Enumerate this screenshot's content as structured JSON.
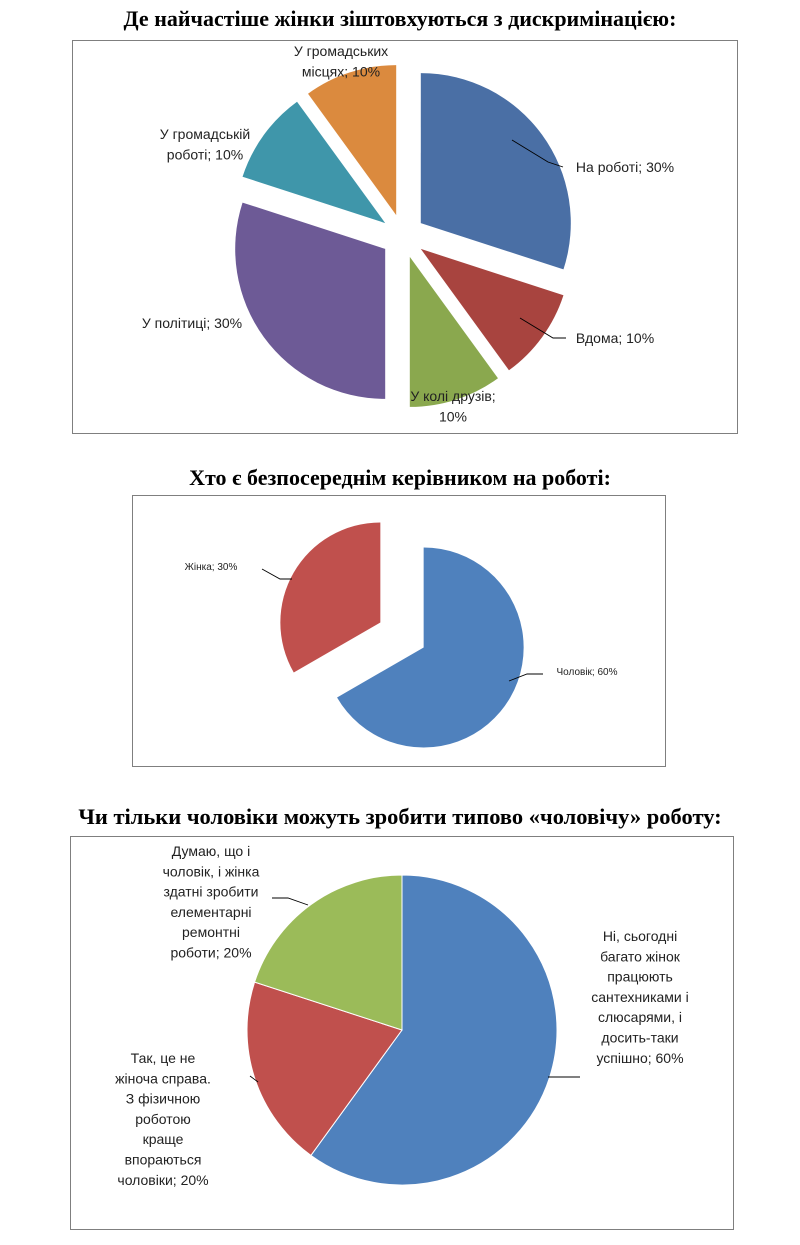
{
  "chart_data": [
    {
      "type": "pie",
      "title": "Де найчастіше жінки зіштовхуються з дискримінацією:",
      "categories": [
        "На роботі",
        "Вдома",
        "У колі друзів",
        "У політиці",
        "У громадській роботі",
        "У громадських місцях"
      ],
      "values": [
        30,
        10,
        10,
        30,
        10,
        10
      ],
      "labels": [
        [
          "На роботі; 30%"
        ],
        [
          "Вдома; 10%"
        ],
        [
          "У колі друзів;",
          "10%"
        ],
        [
          "У політиці; 30%"
        ],
        [
          "У громадській",
          "роботі; 10%"
        ],
        [
          "У громадських",
          "місцях; 10%"
        ]
      ],
      "colors": [
        "#4a6fa5",
        "#a8443f",
        "#8aa84e",
        "#6d5a96",
        "#3f96aa",
        "#db8a3e"
      ],
      "exploded": true
    },
    {
      "type": "pie",
      "title": "Хто є безпосереднім керівником на роботі:",
      "categories": [
        "Чоловік",
        "Жінка"
      ],
      "values": [
        60,
        30
      ],
      "labels": [
        [
          "Чоловік; 60%"
        ],
        [
          "Жінка; 30%"
        ]
      ],
      "colors": [
        "#4f81bd",
        "#c0504d"
      ],
      "exploded": true
    },
    {
      "type": "pie",
      "title": "Чи тільки чоловіки можуть зробити типово «чоловічу» роботу:",
      "categories": [
        "Ні, сьогодні багато жінок працюють сантехниками і слюсарями, і досить-таки успішно",
        "Так, це не жіноча справа. З фізичною роботою краще впораються чоловіки",
        "Думаю, що і чоловік, і жінка здатні зробити елементарні ремонтні роботи"
      ],
      "values": [
        60,
        20,
        20
      ],
      "labels": [
        [
          "Ні, сьогодні",
          "багато жінок",
          "працюють",
          "сантехниками і",
          "слюсарями, і",
          "досить-таки",
          "успішно; 60%"
        ],
        [
          "Так, це не",
          "жіноча справа.",
          "З фізичною",
          "роботою",
          "краще",
          "впораються",
          "чоловіки; 20%"
        ],
        [
          "Думаю, що і",
          "чоловік, і жінка",
          "здатні зробити",
          "елементарні",
          "ремонтні",
          "роботи; 20%"
        ]
      ],
      "colors": [
        "#4f81bd",
        "#c0504d",
        "#9bbb59"
      ],
      "exploded": false
    }
  ]
}
